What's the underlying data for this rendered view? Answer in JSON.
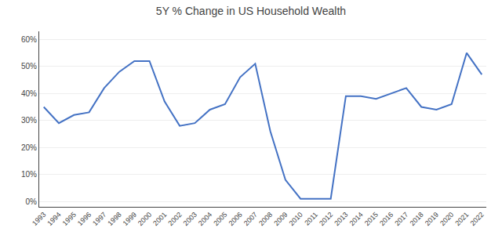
{
  "chart_data": {
    "type": "line",
    "title": "5Y % Change in US Household Wealth",
    "x": [
      1993,
      1994,
      1995,
      1996,
      1997,
      1998,
      1999,
      2000,
      2001,
      2002,
      2003,
      2004,
      2005,
      2006,
      2007,
      2008,
      2009,
      2010,
      2011,
      2012,
      2013,
      2014,
      2015,
      2016,
      2017,
      2018,
      2019,
      2020,
      2021,
      2022
    ],
    "values": [
      0.35,
      0.29,
      0.32,
      0.33,
      0.42,
      0.48,
      0.52,
      0.52,
      0.37,
      0.28,
      0.29,
      0.34,
      0.36,
      0.46,
      0.51,
      0.26,
      0.08,
      0.01,
      0.01,
      0.01,
      0.39,
      0.39,
      0.38,
      0.4,
      0.42,
      0.35,
      0.34,
      0.36,
      0.55,
      0.47
    ],
    "color": "#4472C4",
    "xlim": [
      1992.7,
      2022.3
    ],
    "xticks": [
      1993,
      1994,
      1995,
      1996,
      1997,
      1998,
      1999,
      2000,
      2001,
      2002,
      2003,
      2004,
      2005,
      2006,
      2007,
      2008,
      2009,
      2010,
      2011,
      2012,
      2013,
      2014,
      2015,
      2016,
      2017,
      2018,
      2019,
      2020,
      2021,
      2022
    ],
    "ylim": [
      -0.02,
      0.63
    ],
    "yticks": [
      {
        "value": 0.0,
        "label": "0%"
      },
      {
        "value": 0.1,
        "label": "10%"
      },
      {
        "value": 0.2,
        "label": "20%"
      },
      {
        "value": 0.3,
        "label": "30%"
      },
      {
        "value": 0.4,
        "label": "40%"
      },
      {
        "value": 0.5,
        "label": "50%"
      },
      {
        "value": 0.6,
        "label": "60%"
      }
    ],
    "grid": true
  }
}
